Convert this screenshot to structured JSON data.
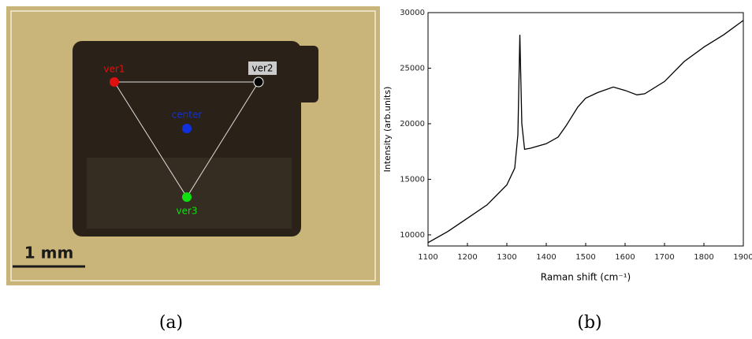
{
  "panel_a": {
    "labels": {
      "ver1": "ver1",
      "ver2": "ver2",
      "center": "center",
      "ver3": "ver3"
    },
    "scale_bar": "1 mm"
  },
  "chart_data": {
    "type": "line",
    "xlabel": "Raman shift (cm⁻¹)",
    "ylabel": "Intensity (arb.units)",
    "x": [
      1100,
      1150,
      1200,
      1250,
      1300,
      1320,
      1328,
      1333,
      1338,
      1345,
      1360,
      1400,
      1430,
      1450,
      1480,
      1500,
      1530,
      1570,
      1600,
      1630,
      1650,
      1700,
      1750,
      1800,
      1850,
      1900
    ],
    "values": [
      9300,
      10300,
      11500,
      12700,
      14500,
      16000,
      19000,
      28000,
      20000,
      17700,
      17800,
      18200,
      18800,
      19800,
      21500,
      22300,
      22800,
      23300,
      23000,
      22600,
      22700,
      23800,
      25600,
      26900,
      28000,
      29300
    ],
    "color": "#000000",
    "xlim": [
      1100,
      1900
    ],
    "xticks": [
      1100,
      1200,
      1300,
      1400,
      1500,
      1600,
      1700,
      1800,
      1900
    ],
    "ylim": [
      9000,
      30000
    ],
    "yticks": [
      10000,
      15000,
      20000,
      25000,
      30000
    ]
  },
  "captions": [
    "(a)",
    "(b)"
  ]
}
